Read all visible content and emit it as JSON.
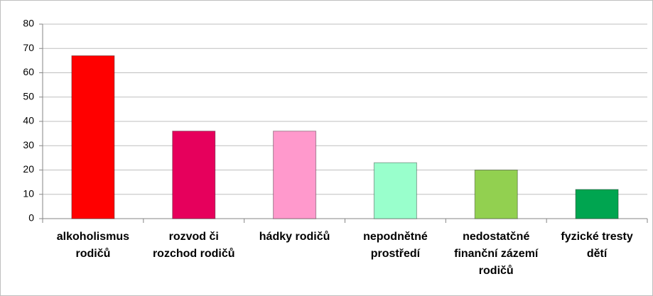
{
  "chart_data": {
    "type": "bar",
    "categories": [
      "alkoholismus rodičů",
      "rozvod či rozchod rodičů",
      "hádky rodičů",
      "nepodnětné prostředí",
      "nedostatčné finanční zázemí rodičů",
      "fyzické tresty dětí"
    ],
    "values": [
      67,
      36,
      36,
      23,
      20,
      12
    ],
    "colors": [
      "#ff0000",
      "#e6005c",
      "#ff99cc",
      "#99ffcc",
      "#92d050",
      "#00a550"
    ],
    "ylim": [
      0,
      80
    ],
    "yticks": [
      0,
      10,
      20,
      30,
      40,
      50,
      60,
      70,
      80
    ],
    "grid": true
  }
}
